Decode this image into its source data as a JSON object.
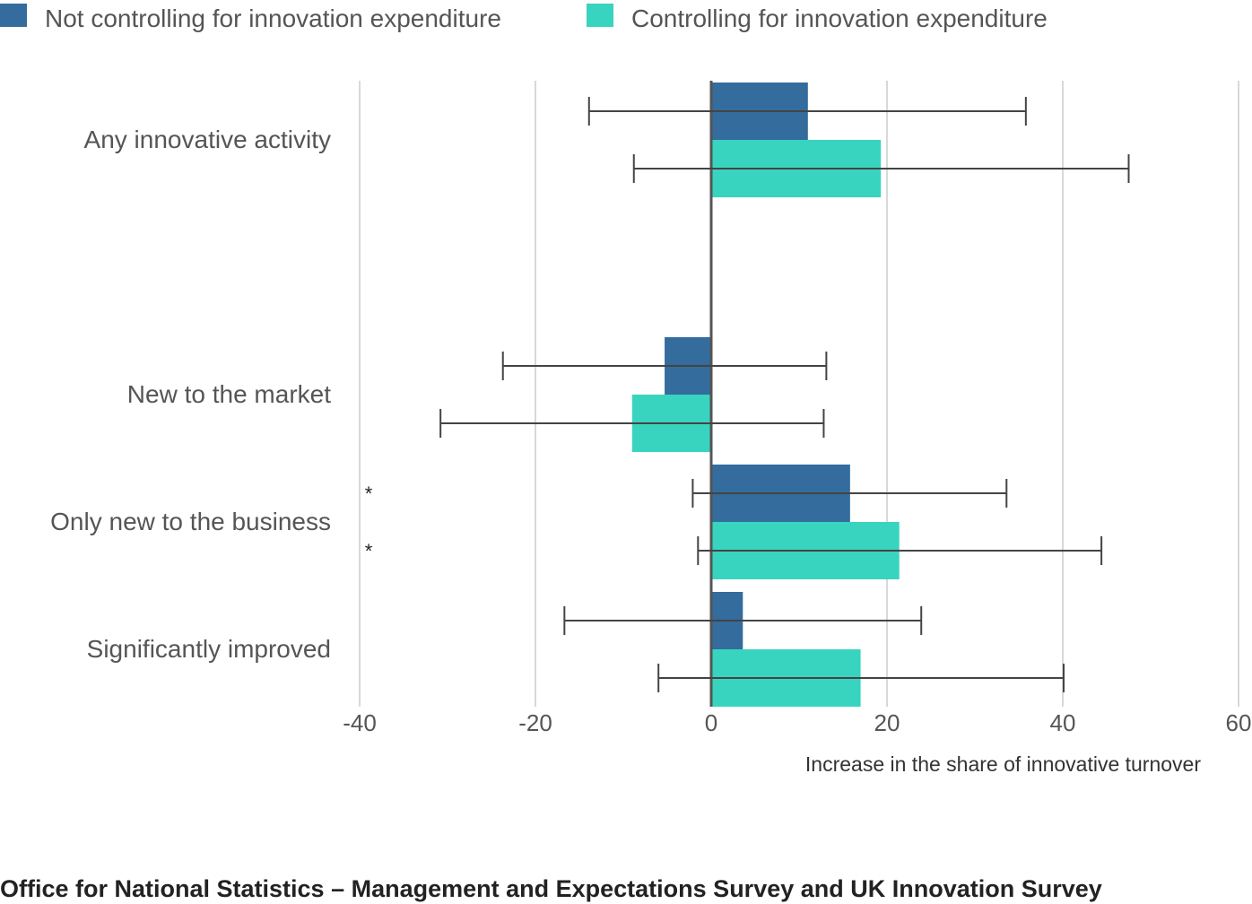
{
  "chart_data": {
    "type": "bar",
    "orientation": "horizontal",
    "categories": [
      "Any innovative activity",
      "New to the market",
      "Only new to the business",
      "Significantly improved"
    ],
    "series": [
      {
        "name": "Not controlling for innovation expenditure",
        "color": "#336c9d",
        "values": [
          11,
          -5.3,
          15.8,
          3.6
        ],
        "ci_low": [
          -13.9,
          -23.7,
          -2.1,
          -16.7
        ],
        "ci_high": [
          35.8,
          13.1,
          33.6,
          23.9
        ]
      },
      {
        "name": "Controlling for innovation expenditure",
        "color": "#38d4bf",
        "values": [
          19.3,
          -9,
          21.4,
          17
        ],
        "ci_low": [
          -8.8,
          -30.8,
          -1.5,
          -6
        ],
        "ci_high": [
          47.5,
          12.8,
          44.4,
          40.1
        ]
      }
    ],
    "significance_marker": "*",
    "significant_categories": [
      "Only new to the business"
    ],
    "xlim": [
      -40,
      60
    ],
    "xticks": [
      -40,
      -20,
      0,
      20,
      40,
      60
    ],
    "xlabel": "Increase in the share of innovative turnover",
    "grid": true,
    "legend_position": "top-left"
  },
  "source": "Office for National Statistics – Management and Expectations Survey and UK Innovation Survey"
}
